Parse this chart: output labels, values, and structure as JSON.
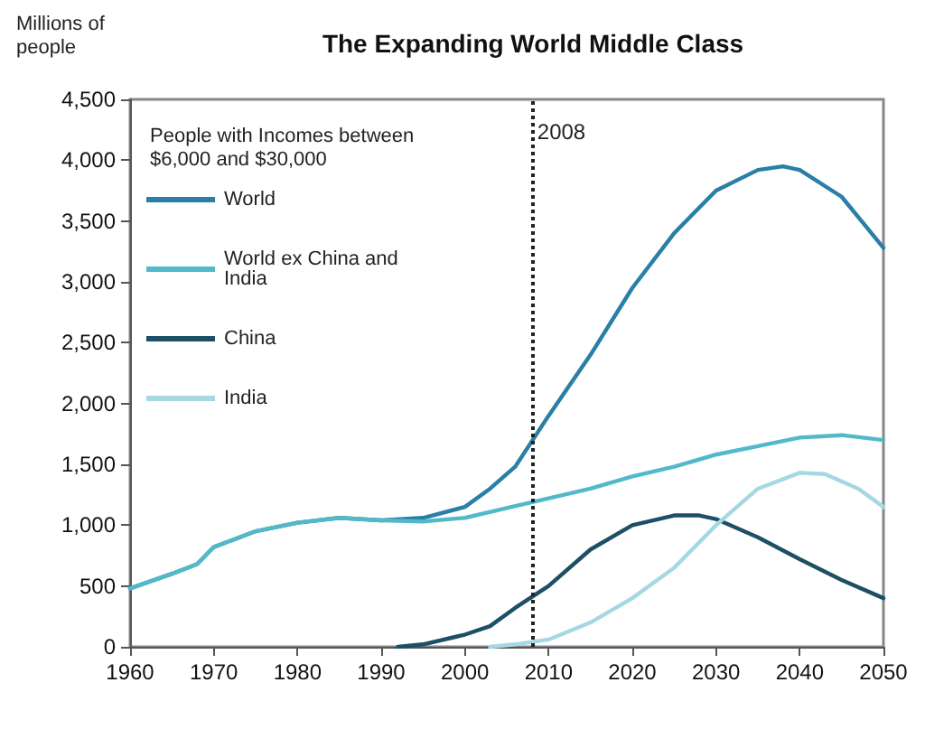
{
  "chart_data": {
    "type": "line",
    "title": "The Expanding World Middle Class",
    "ylabel": "Millions of people",
    "legend_title": "People with Incomes between $6,000 and $30,000",
    "xlim": [
      1960,
      2050
    ],
    "xticks": [
      1960,
      1970,
      1980,
      1990,
      2000,
      2010,
      2020,
      2030,
      2040,
      2050
    ],
    "ylim": [
      0,
      4500
    ],
    "yticks": [
      0,
      500,
      {
        "value": 1000,
        "label": "1,000"
      },
      {
        "value": 1500,
        "label": "1,500"
      },
      {
        "value": 2000,
        "label": "2,000"
      },
      {
        "value": 2500,
        "label": "2,500"
      },
      {
        "value": 3000,
        "label": "3,000"
      },
      {
        "value": 3500,
        "label": "3,500"
      },
      {
        "value": 4000,
        "label": "4,000"
      },
      {
        "value": 4500,
        "label": "4,500"
      }
    ],
    "grid": false,
    "legend": "top left",
    "marker": "none",
    "line_style": "solid",
    "ref_lines": [
      {
        "axis": "x",
        "value": 2008,
        "label": "2008",
        "color": "#222222",
        "line_style": "dotted"
      }
    ],
    "series": [
      {
        "name": "World",
        "color": "#2a7fa6",
        "x": [
          1960,
          1965,
          1968,
          1970,
          1975,
          1980,
          1985,
          1990,
          1995,
          2000,
          2003,
          2006,
          2010,
          2015,
          2020,
          2025,
          2030,
          2035,
          2038,
          2040,
          2045,
          2050
        ],
        "values": [
          480,
          600,
          680,
          820,
          950,
          1020,
          1060,
          1040,
          1060,
          1150,
          1300,
          1480,
          1900,
          2400,
          2950,
          3400,
          3750,
          3920,
          3950,
          3920,
          3700,
          3280
        ]
      },
      {
        "name": "World ex China and India",
        "color": "#52b9c9",
        "x": [
          1960,
          1965,
          1968,
          1970,
          1975,
          1980,
          1985,
          1990,
          1995,
          2000,
          2005,
          2010,
          2015,
          2020,
          2025,
          2030,
          2035,
          2040,
          2045,
          2050
        ],
        "values": [
          480,
          600,
          680,
          820,
          950,
          1020,
          1060,
          1040,
          1030,
          1060,
          1140,
          1220,
          1300,
          1400,
          1480,
          1580,
          1650,
          1720,
          1740,
          1700
        ]
      },
      {
        "name": "China",
        "color": "#1d4f66",
        "x": [
          1992,
          1995,
          2000,
          2003,
          2006,
          2010,
          2015,
          2020,
          2025,
          2028,
          2030,
          2035,
          2040,
          2045,
          2050
        ],
        "values": [
          0,
          20,
          100,
          170,
          320,
          500,
          800,
          1000,
          1080,
          1080,
          1050,
          900,
          720,
          550,
          400
        ]
      },
      {
        "name": "India",
        "color": "#a5d8e3",
        "x": [
          2003,
          2006,
          2010,
          2015,
          2020,
          2025,
          2030,
          2035,
          2040,
          2043,
          2047,
          2050
        ],
        "values": [
          0,
          20,
          60,
          200,
          400,
          650,
          1000,
          1300,
          1430,
          1420,
          1300,
          1150
        ]
      }
    ]
  }
}
